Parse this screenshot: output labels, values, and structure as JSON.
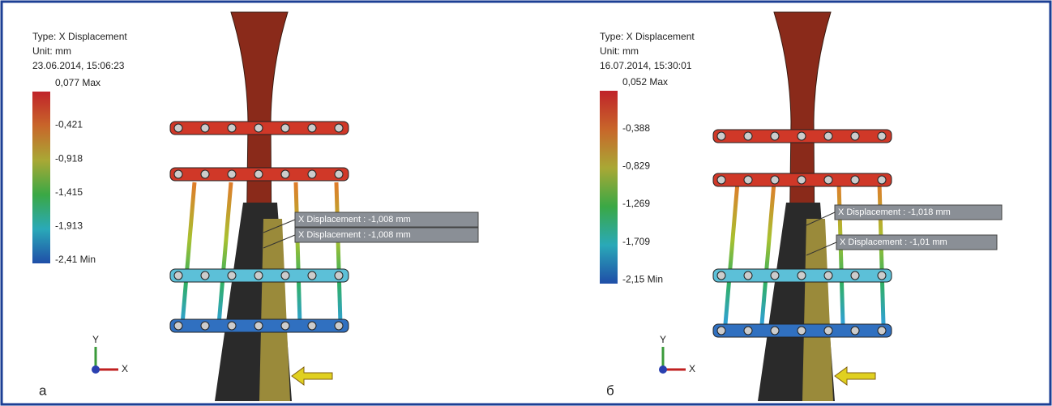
{
  "panels": [
    {
      "type_label": "Type: X Displacement",
      "unit": "Unit: mm",
      "timestamp": "23.06.2014, 15:06:23",
      "legend": [
        "0,077 Max",
        "-0,421",
        "-0,918",
        "-1,415",
        "-1,913",
        "-2,41 Min"
      ],
      "annotations": [
        "X Displacement : -1,008 mm",
        "X Displacement : -1,008 mm"
      ],
      "axes": [
        "Y",
        "X"
      ],
      "label": "а"
    },
    {
      "type_label": "Type: X Displacement",
      "unit": "Unit: mm",
      "timestamp": "16.07.2014, 15:30:01",
      "legend": [
        "0,052 Max",
        "-0,388",
        "-0,829",
        "-1,269",
        "-1,709",
        "-2,15 Min"
      ],
      "annotations": [
        "X Displacement : -1,018 mm",
        "X Displacement : -1,01 mm"
      ],
      "axes": [
        "Y",
        "X"
      ],
      "label": "б"
    }
  ]
}
